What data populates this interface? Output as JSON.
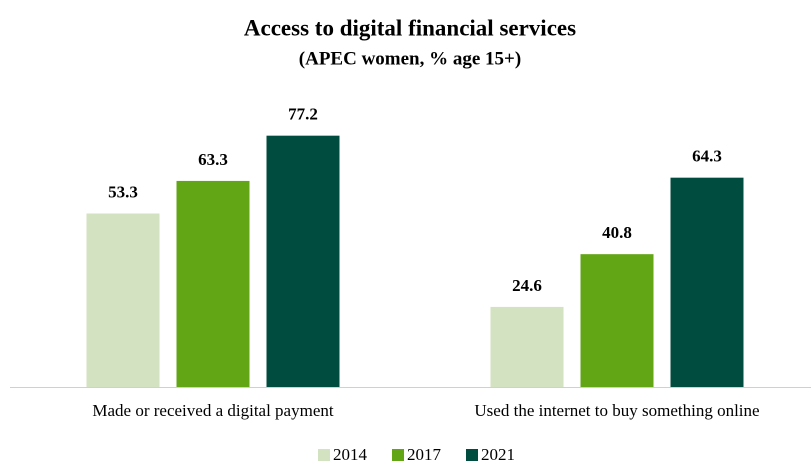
{
  "chart_data": {
    "type": "bar",
    "title": "Access to digital financial services",
    "subtitle": "(APEC women, % age 15+)",
    "categories": [
      "Made or received a digital payment",
      "Used the internet to  buy something online"
    ],
    "series": [
      {
        "name": "2014",
        "color": "#d3e2c0",
        "values": [
          53.3,
          24.6
        ]
      },
      {
        "name": "2017",
        "color": "#62a515",
        "values": [
          63.3,
          40.8
        ]
      },
      {
        "name": "2021",
        "color": "#004d40",
        "values": [
          77.2,
          64.3
        ]
      }
    ],
    "ylim": [
      0,
      90
    ],
    "legend": "bottom"
  }
}
